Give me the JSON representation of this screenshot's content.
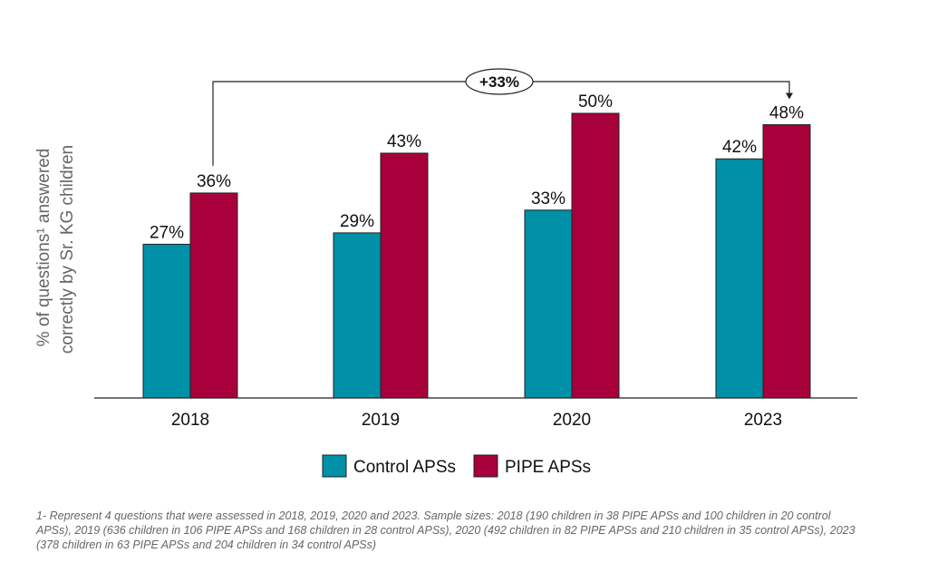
{
  "chart_data": {
    "type": "bar",
    "categories": [
      "2018",
      "2019",
      "2020",
      "2023"
    ],
    "series": [
      {
        "name": "Control APSs",
        "color": "#0090a8",
        "values": [
          27,
          29,
          33,
          42
        ],
        "labels": [
          "27%",
          "29%",
          "33%",
          "42%"
        ]
      },
      {
        "name": "PIPE APSs",
        "color": "#a8003a",
        "values": [
          36,
          43,
          50,
          48
        ],
        "labels": [
          "36%",
          "43%",
          "50%",
          "48%"
        ]
      }
    ],
    "ylabel_line1": "% of questions¹ answered",
    "ylabel_line2": "correctly by  Sr. KG children",
    "ylim": [
      0,
      50
    ],
    "annotation": {
      "text": "+33%",
      "from": "2018",
      "to": "2023",
      "series": "PIPE APSs"
    },
    "legend": {
      "position": "bottom-center"
    }
  },
  "footnote": "1- Represent 4 questions that were assessed in 2018, 2019, 2020 and 2023. Sample sizes: 2018 (190 children in 38 PIPE APSs and 100 children in 20 control APSs), 2019 (636 children in 106 PIPE APSs and 168 children in 28 control APSs), 2020 (492 children in 82 PIPE APSs and 210 children in 35 control APSs), 2023 (378 children in 63 PIPE APSs and 204 children in 34 control APSs)"
}
